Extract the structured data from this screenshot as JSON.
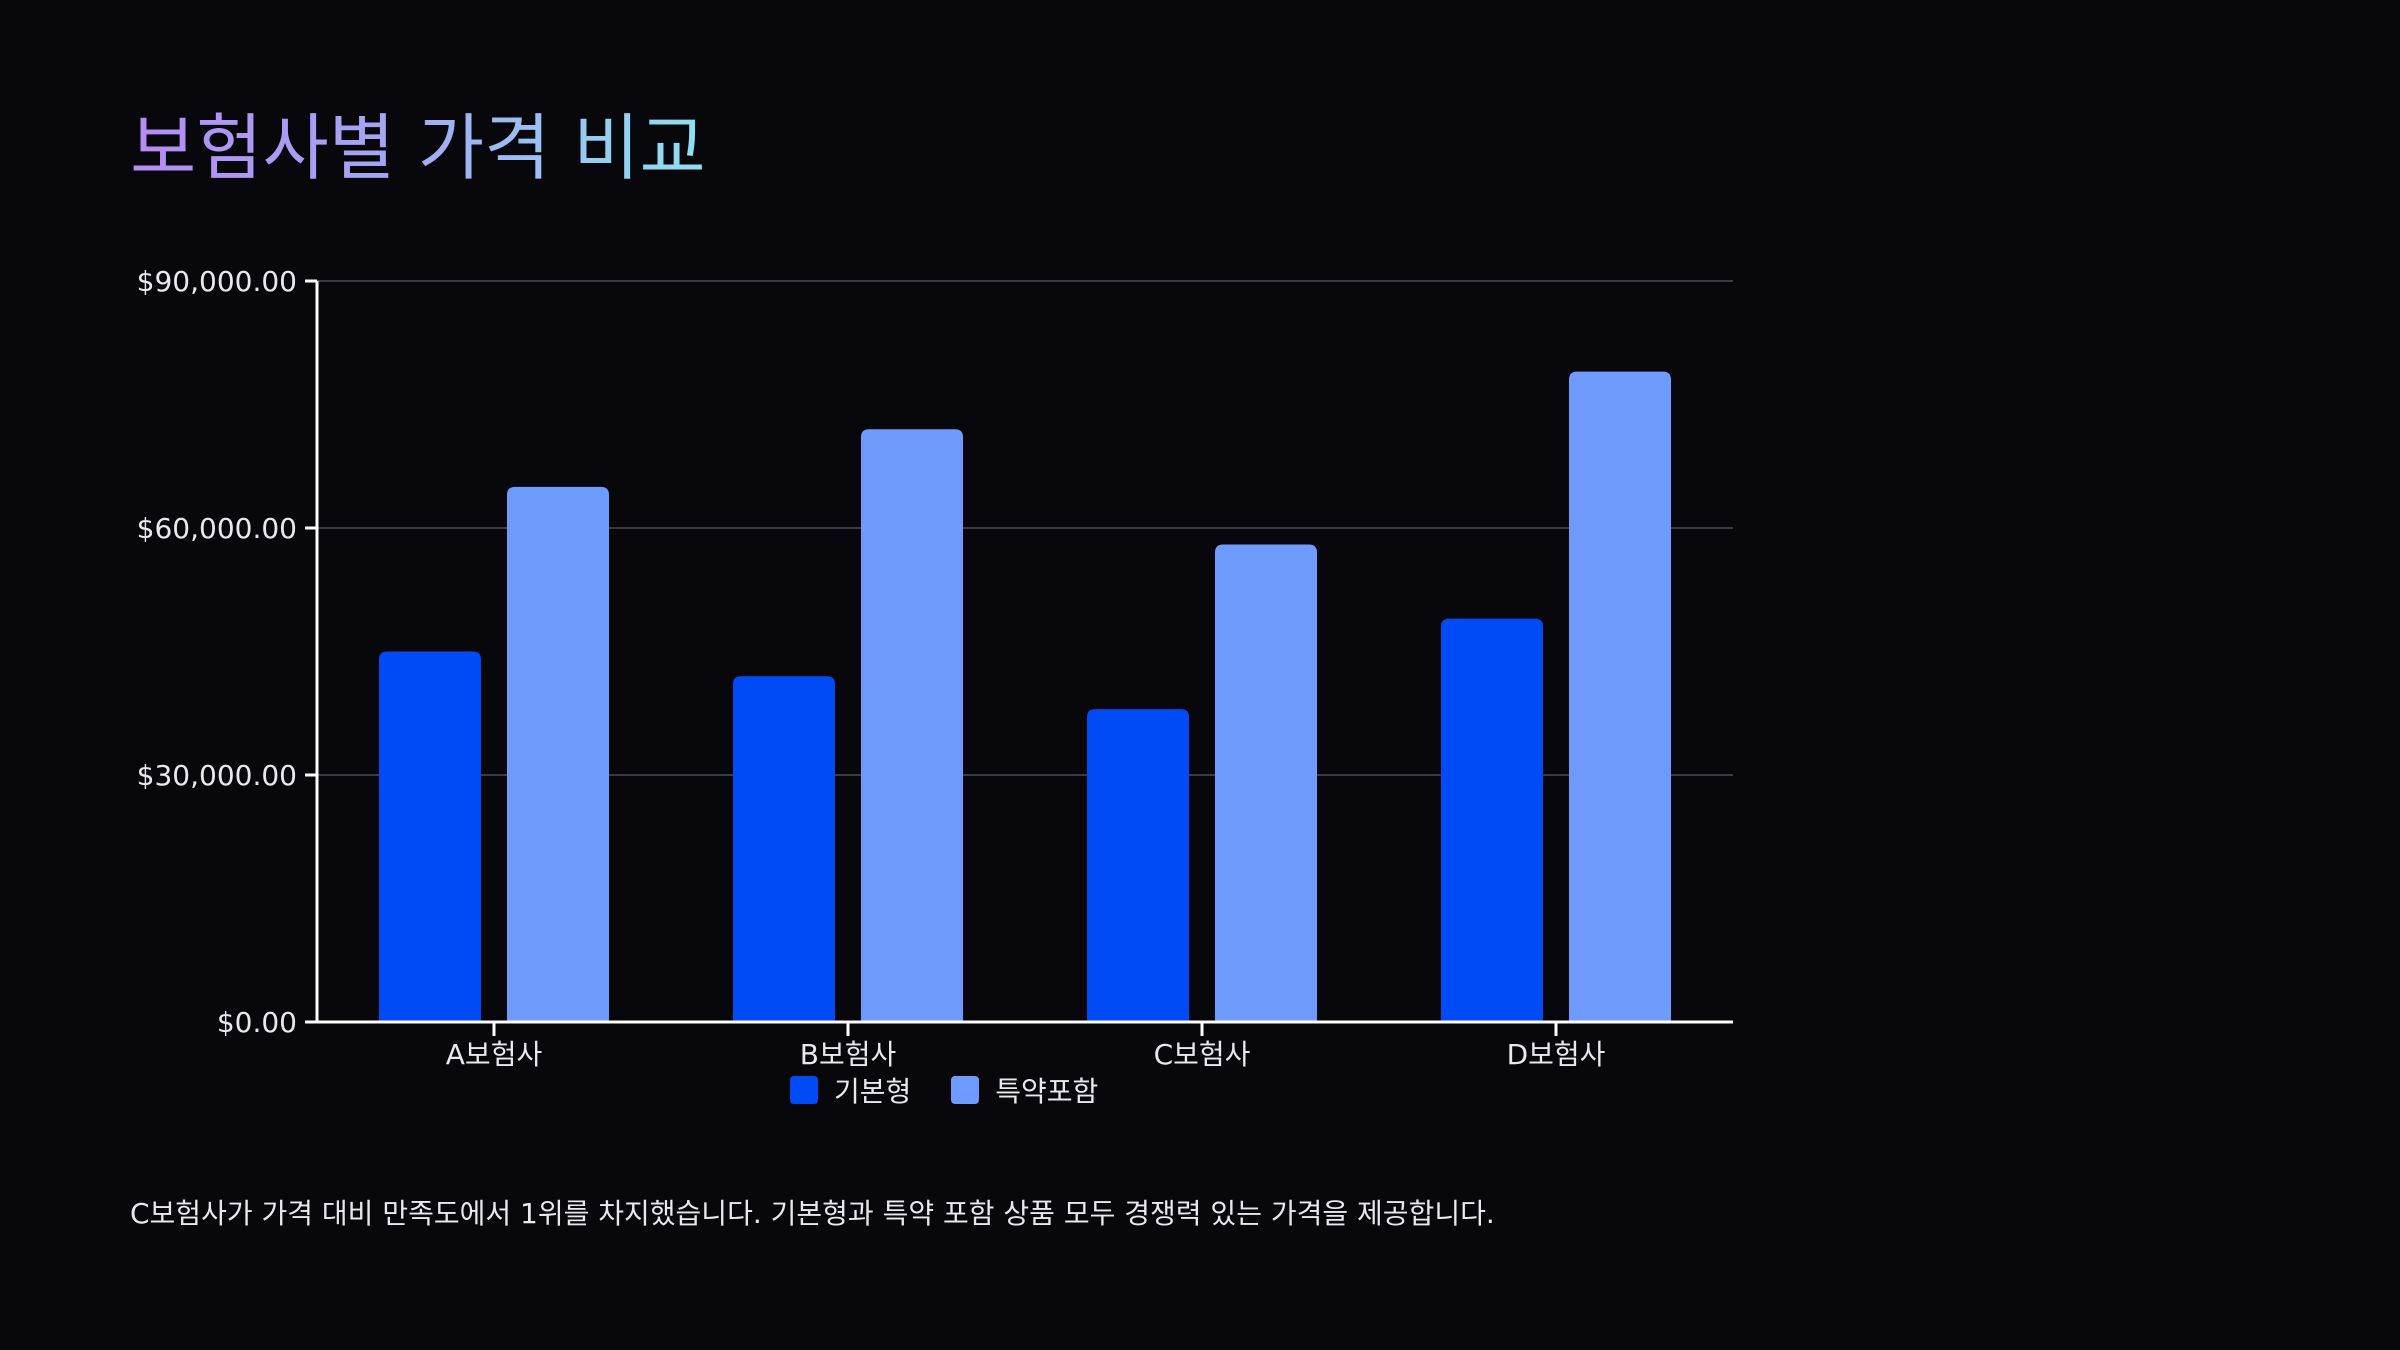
{
  "title": "보험사별 가격 비교",
  "caption": "C보험사가 가격 대비 만족도에서 1위를 차지했습니다. 기본형과 특약 포함 상품 모두 경쟁력 있는 가격을 제공합니다.",
  "colors": {
    "background": "#07070c",
    "basic": "#004bf5",
    "rider": "#6f9bff",
    "axis": "#ffffff",
    "grid": "#3a3a44"
  },
  "chart_data": {
    "type": "bar",
    "categories": [
      "A보험사",
      "B보험사",
      "C보험사",
      "D보험사"
    ],
    "series": [
      {
        "name": "기본형",
        "values": [
          45000,
          42000,
          38000,
          49000
        ]
      },
      {
        "name": "특약포함",
        "values": [
          65000,
          72000,
          58000,
          79000
        ]
      }
    ],
    "ylim": [
      0,
      90000
    ],
    "yticks": [
      0,
      30000,
      60000,
      90000
    ],
    "ytick_labels": [
      "$0.00",
      "$30,000.00",
      "$60,000.00",
      "$90,000.00"
    ],
    "grid": true,
    "legend_position": "bottom-center"
  }
}
